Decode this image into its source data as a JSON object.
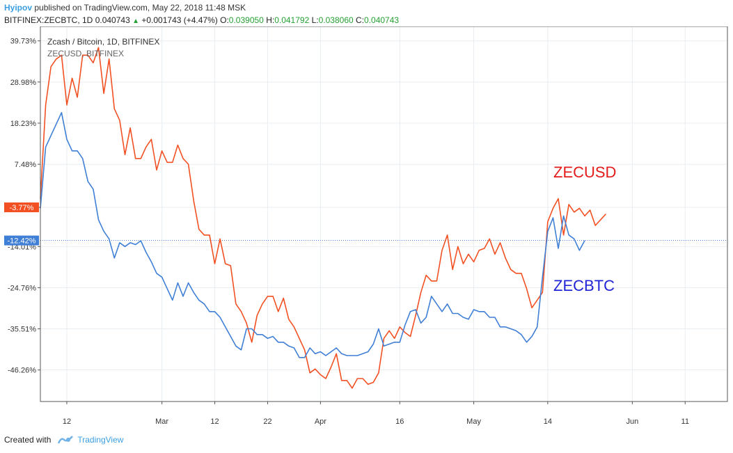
{
  "header": {
    "author": "Hyipov",
    "published": " published on TradingView.com, May 22, 2018 11:48 MSK",
    "symbol": "BITFINEX:ZECBTC, 1D",
    "last": "0.040743",
    "change": "+0.001743 (+4.47%)",
    "o_label": "O:",
    "o": "0.039050",
    "h_label": "H:",
    "h": "0.041792",
    "l_label": "L:",
    "l": "0.038060",
    "c_label": "C:",
    "c": "0.040743"
  },
  "legend": {
    "line1": "Zcash / Bitcoin, 1D, BITFINEX",
    "line2": "ZECUSD, BITFINEX"
  },
  "annotations": {
    "zecusd": "ZECUSD",
    "zecbtc": "ZECBTC"
  },
  "footer": {
    "created_with": "Created with",
    "brand": "TradingView"
  },
  "colors": {
    "zecusd": "#f25022",
    "zecbtc": "#3f7fd5",
    "zecusd_text": "#e31b1b",
    "zecbtc_text": "#1f24d6",
    "grid": "#e8edf1",
    "axis": "#555555"
  },
  "chart_data": {
    "type": "line",
    "title": "Zcash / Bitcoin, 1D, BITFINEX",
    "ylabel": "",
    "y_ticks": [
      "39.73%",
      "28.98%",
      "18.23%",
      "7.48%",
      "-3.77%",
      "-14.01%",
      "-24.76%",
      "-35.51%",
      "-46.26%"
    ],
    "x_ticks": [
      "12",
      "Mar",
      "12",
      "22",
      "Apr",
      "16",
      "May",
      "14",
      "Jun",
      "11"
    ],
    "x_ticks_day": [
      0,
      18,
      28,
      38,
      48,
      63,
      77,
      91,
      107,
      117
    ],
    "x_range": [
      -5,
      125
    ],
    "ylim": [
      -54.5,
      43.5
    ],
    "x_start": "2018-02-12",
    "markers": [
      {
        "value": -3.77,
        "label": "-3.77%",
        "color": "#f25022"
      },
      {
        "value": -12.42,
        "label": "-12.42%",
        "color": "#3f7fd5"
      }
    ],
    "series": [
      {
        "name": "ZECUSD",
        "values": [
          [
            -5,
            -1.5
          ],
          [
            -4,
            23
          ],
          [
            -3,
            33
          ],
          [
            -2,
            35
          ],
          [
            -1,
            36
          ],
          [
            0,
            23
          ],
          [
            1,
            30
          ],
          [
            2,
            25
          ],
          [
            3,
            36
          ],
          [
            4,
            36
          ],
          [
            5,
            34
          ],
          [
            6,
            38
          ],
          [
            7,
            26
          ],
          [
            8,
            35
          ],
          [
            9,
            22
          ],
          [
            10,
            19
          ],
          [
            11,
            10
          ],
          [
            12,
            17
          ],
          [
            13,
            9
          ],
          [
            14,
            9
          ],
          [
            15,
            12
          ],
          [
            16,
            14
          ],
          [
            17,
            6
          ],
          [
            18,
            11
          ],
          [
            19,
            8
          ],
          [
            20,
            8
          ],
          [
            21,
            12.5
          ],
          [
            22,
            9
          ],
          [
            23,
            7.5
          ],
          [
            24,
            -2
          ],
          [
            25,
            -9.5
          ],
          [
            26,
            -11
          ],
          [
            27,
            -11
          ],
          [
            28,
            -18.5
          ],
          [
            29,
            -12
          ],
          [
            30,
            -18.5
          ],
          [
            31,
            -19
          ],
          [
            32,
            -29
          ],
          [
            33,
            -31
          ],
          [
            34,
            -34
          ],
          [
            35,
            -39
          ],
          [
            36,
            -32
          ],
          [
            37,
            -29
          ],
          [
            38,
            -27
          ],
          [
            39,
            -27
          ],
          [
            40,
            -31
          ],
          [
            41,
            -27.5
          ],
          [
            42,
            -33
          ],
          [
            43,
            -35
          ],
          [
            44,
            -38
          ],
          [
            45,
            -41
          ],
          [
            46,
            -47
          ],
          [
            47,
            -46
          ],
          [
            48,
            -47.5
          ],
          [
            49,
            -48.5
          ],
          [
            50,
            -45.5
          ],
          [
            51,
            -42
          ],
          [
            52,
            -49
          ],
          [
            53,
            -49
          ],
          [
            54,
            -51
          ],
          [
            55,
            -48.5
          ],
          [
            56,
            -48.5
          ],
          [
            57,
            -50
          ],
          [
            58,
            -49.5
          ],
          [
            59,
            -47
          ],
          [
            60,
            -38
          ],
          [
            61,
            -36
          ],
          [
            62,
            -38
          ],
          [
            63,
            -35
          ],
          [
            64,
            -36.5
          ],
          [
            65,
            -37.5
          ],
          [
            66,
            -32
          ],
          [
            67,
            -26
          ],
          [
            68,
            -21.5
          ],
          [
            69,
            -23
          ],
          [
            70,
            -23
          ],
          [
            71,
            -15
          ],
          [
            72,
            -11
          ],
          [
            73,
            -20
          ],
          [
            74,
            -14
          ],
          [
            75,
            -18.5
          ],
          [
            76,
            -16
          ],
          [
            77,
            -18
          ],
          [
            78,
            -15
          ],
          [
            79,
            -14.5
          ],
          [
            80,
            -12
          ],
          [
            81,
            -16
          ],
          [
            82,
            -13
          ],
          [
            83,
            -17
          ],
          [
            84,
            -20
          ],
          [
            85,
            -21
          ],
          [
            86,
            -21
          ],
          [
            87,
            -25
          ],
          [
            88,
            -30
          ],
          [
            89,
            -28
          ],
          [
            90,
            -26
          ],
          [
            91,
            -7.5
          ],
          [
            92,
            -4
          ],
          [
            93,
            -1.5
          ],
          [
            94,
            -11
          ],
          [
            95,
            -3
          ],
          [
            96,
            -5
          ],
          [
            97,
            -4
          ],
          [
            98,
            -6
          ],
          [
            99,
            -4.5
          ],
          [
            100,
            -8.5
          ],
          [
            101,
            -7
          ],
          [
            102,
            -5.5
          ]
        ]
      },
      {
        "name": "ZECBTC",
        "values": [
          [
            -5,
            -4
          ],
          [
            -4,
            12
          ],
          [
            -3,
            15
          ],
          [
            -2,
            18
          ],
          [
            -1,
            21
          ],
          [
            0,
            14
          ],
          [
            1,
            11
          ],
          [
            2,
            11
          ],
          [
            3,
            9
          ],
          [
            4,
            3
          ],
          [
            5,
            1
          ],
          [
            6,
            -7
          ],
          [
            7,
            -10
          ],
          [
            8,
            -12
          ],
          [
            9,
            -17
          ],
          [
            10,
            -13
          ],
          [
            11,
            -14
          ],
          [
            12,
            -13
          ],
          [
            13,
            -13.5
          ],
          [
            14,
            -12.5
          ],
          [
            15,
            -15.5
          ],
          [
            16,
            -18
          ],
          [
            17,
            -21
          ],
          [
            18,
            -22
          ],
          [
            19,
            -25
          ],
          [
            20,
            -28
          ],
          [
            21,
            -23.5
          ],
          [
            22,
            -27
          ],
          [
            23,
            -23.5
          ],
          [
            24,
            -26
          ],
          [
            25,
            -28
          ],
          [
            26,
            -29
          ],
          [
            27,
            -31
          ],
          [
            28,
            -31
          ],
          [
            29,
            -32.5
          ],
          [
            30,
            -35
          ],
          [
            31,
            -37.5
          ],
          [
            32,
            -40
          ],
          [
            33,
            -41
          ],
          [
            34,
            -35.5
          ],
          [
            35,
            -35.5
          ],
          [
            36,
            -37
          ],
          [
            37,
            -37
          ],
          [
            38,
            -38
          ],
          [
            39,
            -37.5
          ],
          [
            40,
            -39
          ],
          [
            41,
            -39
          ],
          [
            42,
            -40
          ],
          [
            43,
            -40.5
          ],
          [
            44,
            -43
          ],
          [
            45,
            -43
          ],
          [
            46,
            -40.5
          ],
          [
            47,
            -42
          ],
          [
            48,
            -41.5
          ],
          [
            49,
            -42.5
          ],
          [
            50,
            -41.5
          ],
          [
            51,
            -40.5
          ],
          [
            52,
            -42
          ],
          [
            53,
            -42.5
          ],
          [
            54,
            -42.5
          ],
          [
            55,
            -42.5
          ],
          [
            56,
            -42
          ],
          [
            57,
            -41.5
          ],
          [
            58,
            -39.5
          ],
          [
            59,
            -35.5
          ],
          [
            60,
            -40
          ],
          [
            61,
            -39.5
          ],
          [
            62,
            -39
          ],
          [
            63,
            -39
          ],
          [
            64,
            -34.5
          ],
          [
            65,
            -31
          ],
          [
            66,
            -30.5
          ],
          [
            67,
            -34
          ],
          [
            68,
            -32.5
          ],
          [
            69,
            -27
          ],
          [
            70,
            -29
          ],
          [
            71,
            -31
          ],
          [
            72,
            -29
          ],
          [
            73,
            -31.5
          ],
          [
            74,
            -31.5
          ],
          [
            75,
            -32.5
          ],
          [
            76,
            -33
          ],
          [
            77,
            -30.5
          ],
          [
            78,
            -31
          ],
          [
            79,
            -31
          ],
          [
            80,
            -32.5
          ],
          [
            81,
            -32.5
          ],
          [
            82,
            -35
          ],
          [
            83,
            -35
          ],
          [
            84,
            -35.5
          ],
          [
            85,
            -36
          ],
          [
            86,
            -37
          ],
          [
            87,
            -39
          ],
          [
            88,
            -37.5
          ],
          [
            89,
            -35
          ],
          [
            90,
            -22
          ],
          [
            91,
            -10
          ],
          [
            92,
            -6.5
          ],
          [
            93,
            -14.5
          ],
          [
            94,
            -6
          ],
          [
            95,
            -11
          ],
          [
            96,
            -12
          ],
          [
            97,
            -15
          ],
          [
            98,
            -12.42
          ]
        ]
      }
    ]
  }
}
